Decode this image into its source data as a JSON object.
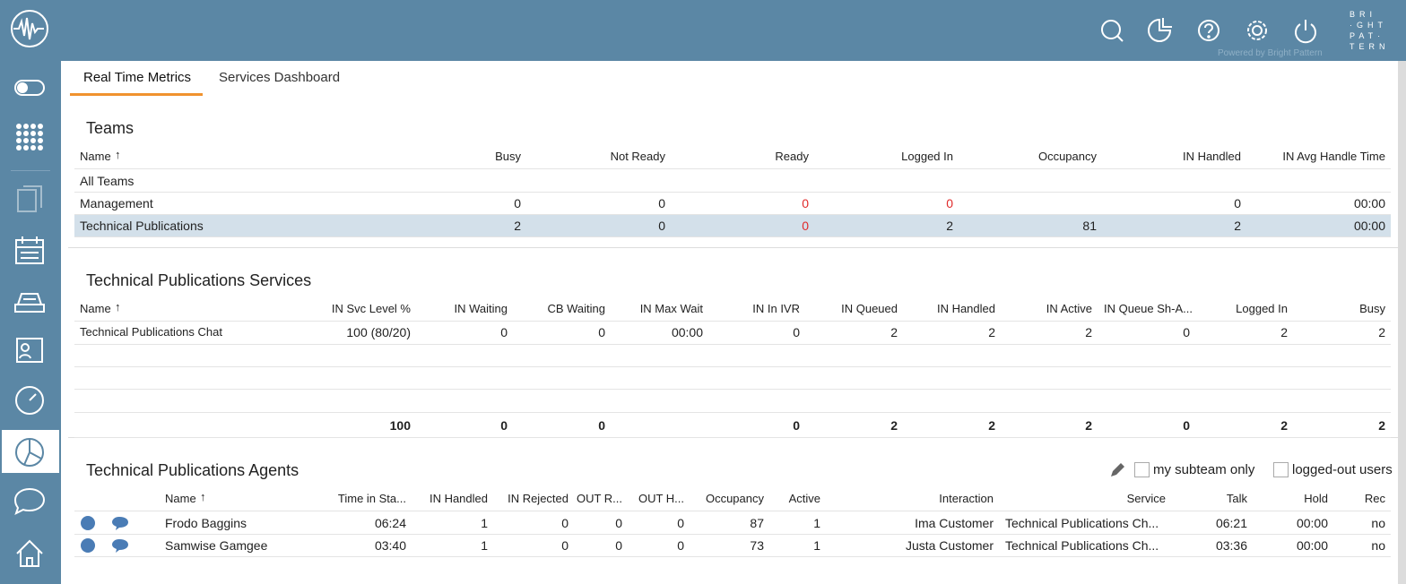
{
  "header": {
    "logo_lines": [
      "BRI",
      "·GHT",
      "PAT·",
      "TERN"
    ],
    "powered_by": "Powered by Bright Pattern"
  },
  "tabs": {
    "items": [
      "Real Time Metrics",
      "Services Dashboard"
    ],
    "active": 0
  },
  "teams": {
    "title": "Teams",
    "sort_mark": "↑",
    "alert_color": "#e02a2a",
    "selected": 2,
    "columns": [
      "Name",
      "Busy",
      "Not Ready",
      "Ready",
      "Logged In",
      "Occupancy",
      "IN Handled",
      "IN Avg Handle Time"
    ],
    "rows": [
      {
        "cells": [
          "All Teams"
        ],
        "alerts": []
      },
      {
        "cells": [
          "Management",
          0,
          0,
          0,
          0,
          null,
          0,
          "00:00"
        ],
        "alerts": [
          3,
          4
        ]
      },
      {
        "cells": [
          "Technical Publications",
          2,
          0,
          0,
          2,
          81,
          2,
          "00:00"
        ],
        "alerts": [
          3
        ]
      }
    ]
  },
  "services": {
    "title": "Technical Publications Services",
    "sort_mark": "↑",
    "columns": [
      "Name",
      "IN Svc Level %",
      "IN Waiting",
      "CB Waiting",
      "IN Max Wait",
      "IN In IVR",
      "IN Queued",
      "IN Handled",
      "IN Active",
      "IN Queue Sh-A...",
      "Logged In",
      "Busy"
    ],
    "rows": [
      [
        "Technical Publications Chat",
        "100 (80/20)",
        0,
        0,
        "00:00",
        0,
        2,
        2,
        2,
        0,
        2,
        2
      ]
    ],
    "totals": [
      null,
      100,
      0,
      0,
      null,
      0,
      2,
      2,
      2,
      0,
      2,
      2
    ]
  },
  "agents": {
    "title": "Technical Publications Agents",
    "sort_mark": "↑",
    "options": [
      "my subteam only",
      "logged-out users"
    ],
    "columns": [
      "Name",
      "Time in Sta...",
      "IN Handled",
      "IN Rejected",
      "OUT R...",
      "OUT H...",
      "Occupancy",
      "Active",
      "Interaction",
      "Service",
      "Talk",
      "Hold",
      "Rec"
    ],
    "rows": [
      [
        "Frodo Baggins",
        "06:24",
        1,
        0,
        0,
        0,
        87,
        1,
        "Ima Customer",
        "Technical Publications Ch...",
        "06:21",
        "00:00",
        "no"
      ],
      [
        "Samwise Gamgee",
        "03:40",
        1,
        0,
        0,
        0,
        73,
        1,
        "Justa Customer",
        "Technical Publications Ch...",
        "03:36",
        "00:00",
        "no"
      ]
    ]
  }
}
